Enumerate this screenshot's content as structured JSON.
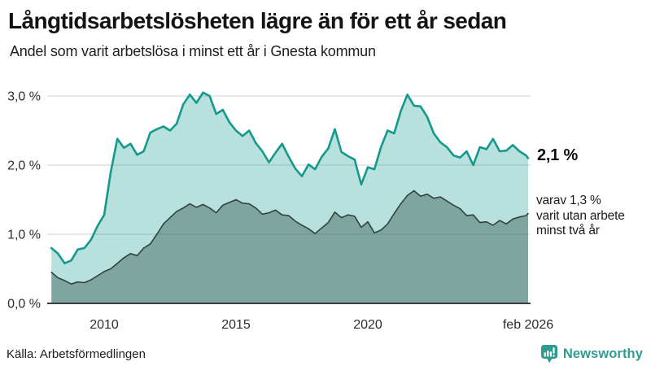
{
  "header": {
    "title": "Långtidsarbetslösheten lägre än för ett år sedan",
    "subtitle": "Andel som varit arbetslösa i minst ett år i Gnesta kommun"
  },
  "annotations": {
    "end_value": "2,1 %",
    "secondary": "varav 1,3 %\nvarit utan arbete\nminst två år"
  },
  "footer": {
    "source": "Källa: Arbetsförmedlingen",
    "brand": "Newsworthy"
  },
  "colors": {
    "accent_teal": "#14998c",
    "light_fill": "#b9dcd7",
    "dark_fill": "#7aa39c",
    "dark_line": "#30433e",
    "brand_teal": "#2e9c90",
    "gridline": "#d8dce1",
    "axis_line": "#3c4043"
  },
  "chart_data": {
    "type": "area",
    "title": "Långtidsarbetslösheten lägre än för ett år sedan",
    "subtitle": "Andel som varit arbetslösa i minst ett år i Gnesta kommun",
    "unit": "%",
    "grid": "horizontal",
    "legend_position": "right-annotations",
    "xlim": [
      2008.0,
      2026.08
    ],
    "ylim": [
      0,
      3.2
    ],
    "y_ticks": [
      {
        "value": 0,
        "label": "0,0 %"
      },
      {
        "value": 1,
        "label": "1,0 %"
      },
      {
        "value": 2,
        "label": "2,0 %"
      },
      {
        "value": 3,
        "label": "3,0 %"
      }
    ],
    "x_ticks": [
      {
        "value": 2010,
        "label": "2010"
      },
      {
        "value": 2015,
        "label": "2015"
      },
      {
        "value": 2020,
        "label": "2020"
      },
      {
        "value": 2026.08,
        "label": "feb 2026"
      }
    ],
    "x": [
      2008,
      2008.25,
      2008.5,
      2008.75,
      2009,
      2009.25,
      2009.5,
      2009.75,
      2010,
      2010.25,
      2010.5,
      2010.75,
      2011,
      2011.25,
      2011.5,
      2011.75,
      2012,
      2012.25,
      2012.5,
      2012.75,
      2013,
      2013.25,
      2013.5,
      2013.75,
      2014,
      2014.25,
      2014.5,
      2014.75,
      2015,
      2015.25,
      2015.5,
      2015.75,
      2016,
      2016.25,
      2016.5,
      2016.75,
      2017,
      2017.25,
      2017.5,
      2017.75,
      2018,
      2018.25,
      2018.5,
      2018.75,
      2019,
      2019.25,
      2019.5,
      2019.75,
      2020,
      2020.25,
      2020.5,
      2020.75,
      2021,
      2021.25,
      2021.5,
      2021.75,
      2022,
      2022.25,
      2022.5,
      2022.75,
      2023,
      2023.25,
      2023.5,
      2023.75,
      2024,
      2024.25,
      2024.5,
      2024.75,
      2025,
      2025.25,
      2025.5,
      2025.75,
      2026,
      2026.08
    ],
    "series": [
      {
        "name": "Arbetslösa minst ett år",
        "last_value": 2.1,
        "last_value_label": "2,1 %",
        "line_color": "#14998c",
        "fill_color": "rgba(20,153,140,0.30)",
        "line_width": 2.6,
        "values": [
          0.8,
          0.72,
          0.58,
          0.62,
          0.78,
          0.8,
          0.92,
          1.12,
          1.28,
          1.9,
          2.38,
          2.25,
          2.31,
          2.15,
          2.2,
          2.47,
          2.52,
          2.56,
          2.5,
          2.6,
          2.88,
          3.02,
          2.9,
          3.05,
          3.0,
          2.74,
          2.8,
          2.62,
          2.5,
          2.42,
          2.5,
          2.32,
          2.2,
          2.04,
          2.18,
          2.31,
          2.12,
          1.95,
          1.84,
          2.01,
          1.94,
          2.12,
          2.24,
          2.52,
          2.19,
          2.13,
          2.08,
          1.72,
          1.97,
          1.94,
          2.26,
          2.5,
          2.46,
          2.78,
          3.02,
          2.86,
          2.85,
          2.7,
          2.46,
          2.33,
          2.26,
          2.14,
          2.11,
          2.2,
          2.0,
          2.26,
          2.23,
          2.38,
          2.2,
          2.21,
          2.29,
          2.2,
          2.14,
          2.1
        ]
      },
      {
        "name": "Varav utan arbete minst två år",
        "last_value": 1.3,
        "last_value_label": "1,3 %",
        "line_color": "#30433e",
        "fill_color": "rgba(47,84,76,0.42)",
        "line_width": 1.6,
        "values": [
          0.45,
          0.37,
          0.33,
          0.28,
          0.31,
          0.3,
          0.34,
          0.4,
          0.46,
          0.5,
          0.58,
          0.66,
          0.72,
          0.69,
          0.8,
          0.86,
          1.0,
          1.15,
          1.24,
          1.33,
          1.38,
          1.44,
          1.39,
          1.43,
          1.38,
          1.31,
          1.42,
          1.46,
          1.5,
          1.45,
          1.44,
          1.38,
          1.29,
          1.31,
          1.35,
          1.28,
          1.27,
          1.19,
          1.13,
          1.08,
          1.01,
          1.09,
          1.17,
          1.32,
          1.24,
          1.28,
          1.26,
          1.1,
          1.18,
          1.02,
          1.06,
          1.15,
          1.3,
          1.44,
          1.56,
          1.63,
          1.55,
          1.58,
          1.52,
          1.54,
          1.48,
          1.42,
          1.37,
          1.27,
          1.28,
          1.17,
          1.18,
          1.13,
          1.2,
          1.15,
          1.22,
          1.25,
          1.27,
          1.3
        ]
      }
    ]
  }
}
